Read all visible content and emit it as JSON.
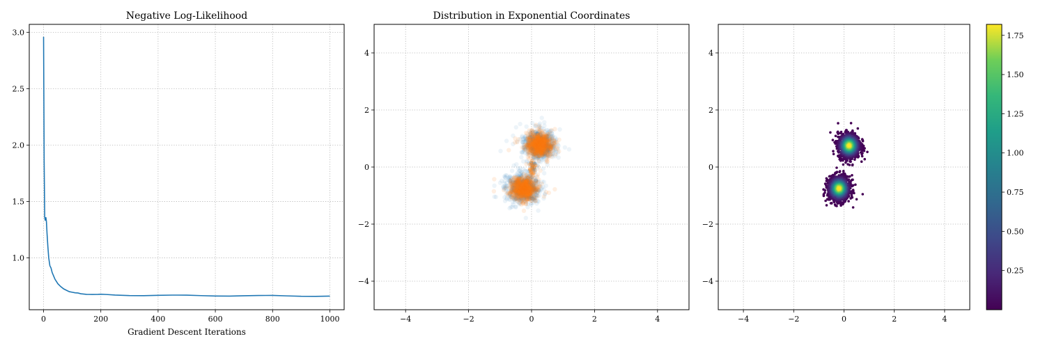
{
  "chart_data": [
    {
      "type": "line",
      "title": "Negative Log-Likelihood",
      "xlabel": "Gradient Descent Iterations",
      "ylabel": "",
      "xlim": [
        -50,
        1050
      ],
      "ylim": [
        0.54,
        3.07
      ],
      "xticks": [
        0,
        200,
        400,
        600,
        800,
        1000
      ],
      "xtick_labels": [
        "0",
        "200",
        "400",
        "600",
        "800",
        "1000"
      ],
      "yticks": [
        1.0,
        1.5,
        2.0,
        2.5,
        3.0
      ],
      "ytick_labels": [
        "1.0",
        "1.5",
        "2.0",
        "2.5",
        "3.0"
      ],
      "grid": true,
      "color": "#1f77b4",
      "series": [
        {
          "x": [
            0,
            2,
            4,
            6,
            8,
            10,
            12,
            15,
            18,
            22,
            26,
            30,
            35,
            40,
            50,
            60,
            70,
            80,
            90,
            100,
            110,
            120,
            130,
            150,
            170,
            190,
            200,
            220,
            250,
            300,
            350,
            400,
            450,
            500,
            550,
            600,
            650,
            700,
            750,
            800,
            850,
            900,
            950,
            1000
          ],
          "y": [
            2.96,
            1.85,
            1.36,
            1.33,
            1.36,
            1.32,
            1.22,
            1.1,
            1.0,
            0.93,
            0.91,
            0.87,
            0.84,
            0.81,
            0.77,
            0.745,
            0.725,
            0.712,
            0.7,
            0.695,
            0.69,
            0.686,
            0.683,
            0.68,
            0.678,
            0.675,
            0.674,
            0.672,
            0.671,
            0.669,
            0.668,
            0.667,
            0.666,
            0.666,
            0.665,
            0.665,
            0.664,
            0.664,
            0.663,
            0.663,
            0.662,
            0.662,
            0.662,
            0.662
          ]
        }
      ]
    },
    {
      "type": "scatter",
      "title": "Distribution in Exponential Coordinates",
      "xlabel": "",
      "ylabel": "",
      "xlim": [
        -5,
        5
      ],
      "ylim": [
        -5,
        5
      ],
      "xticks": [
        -4,
        -2,
        0,
        2,
        4
      ],
      "xtick_labels": [
        "−4",
        "−2",
        "0",
        "2",
        "4"
      ],
      "yticks": [
        -4,
        -2,
        0,
        2,
        4
      ],
      "ytick_labels": [
        "−4",
        "−2",
        "0",
        "2",
        "4"
      ],
      "grid": true,
      "series": [
        {
          "color": "#1f77b4",
          "opacity": 0.08,
          "clusters": [
            {
              "center": [
                0.25,
                0.78
              ],
              "spread": 0.33
            },
            {
              "center": [
                -0.25,
                -0.75
              ],
              "spread": 0.33
            }
          ]
        },
        {
          "color": "#ff7f0e",
          "opacity": 0.12,
          "clusters": [
            {
              "center": [
                0.25,
                0.78
              ],
              "spread": 0.26
            },
            {
              "center": [
                -0.25,
                -0.75
              ],
              "spread": 0.26
            }
          ]
        }
      ]
    },
    {
      "type": "heatmap",
      "title": "",
      "xlabel": "",
      "ylabel": "",
      "xlim": [
        -5,
        5
      ],
      "ylim": [
        -5,
        5
      ],
      "xticks": [
        -4,
        -2,
        0,
        2,
        4
      ],
      "xtick_labels": [
        "−4",
        "−2",
        "0",
        "2",
        "4"
      ],
      "yticks": [
        -4,
        -2,
        0,
        2,
        4
      ],
      "ytick_labels": [
        "−4",
        "−2",
        "0",
        "2",
        "4"
      ],
      "grid": true,
      "colormap": "viridis",
      "clusters": [
        {
          "center": [
            0.2,
            0.75
          ],
          "spread": 0.22
        },
        {
          "center": [
            -0.2,
            -0.75
          ],
          "spread": 0.22
        }
      ],
      "colorbar": {
        "range": [
          0.0,
          1.82
        ],
        "ticks": [
          0.25,
          0.5,
          0.75,
          1.0,
          1.25,
          1.5,
          1.75
        ],
        "tick_labels": [
          "0.25",
          "0.50",
          "0.75",
          "1.00",
          "1.25",
          "1.50",
          "1.75"
        ]
      }
    }
  ]
}
